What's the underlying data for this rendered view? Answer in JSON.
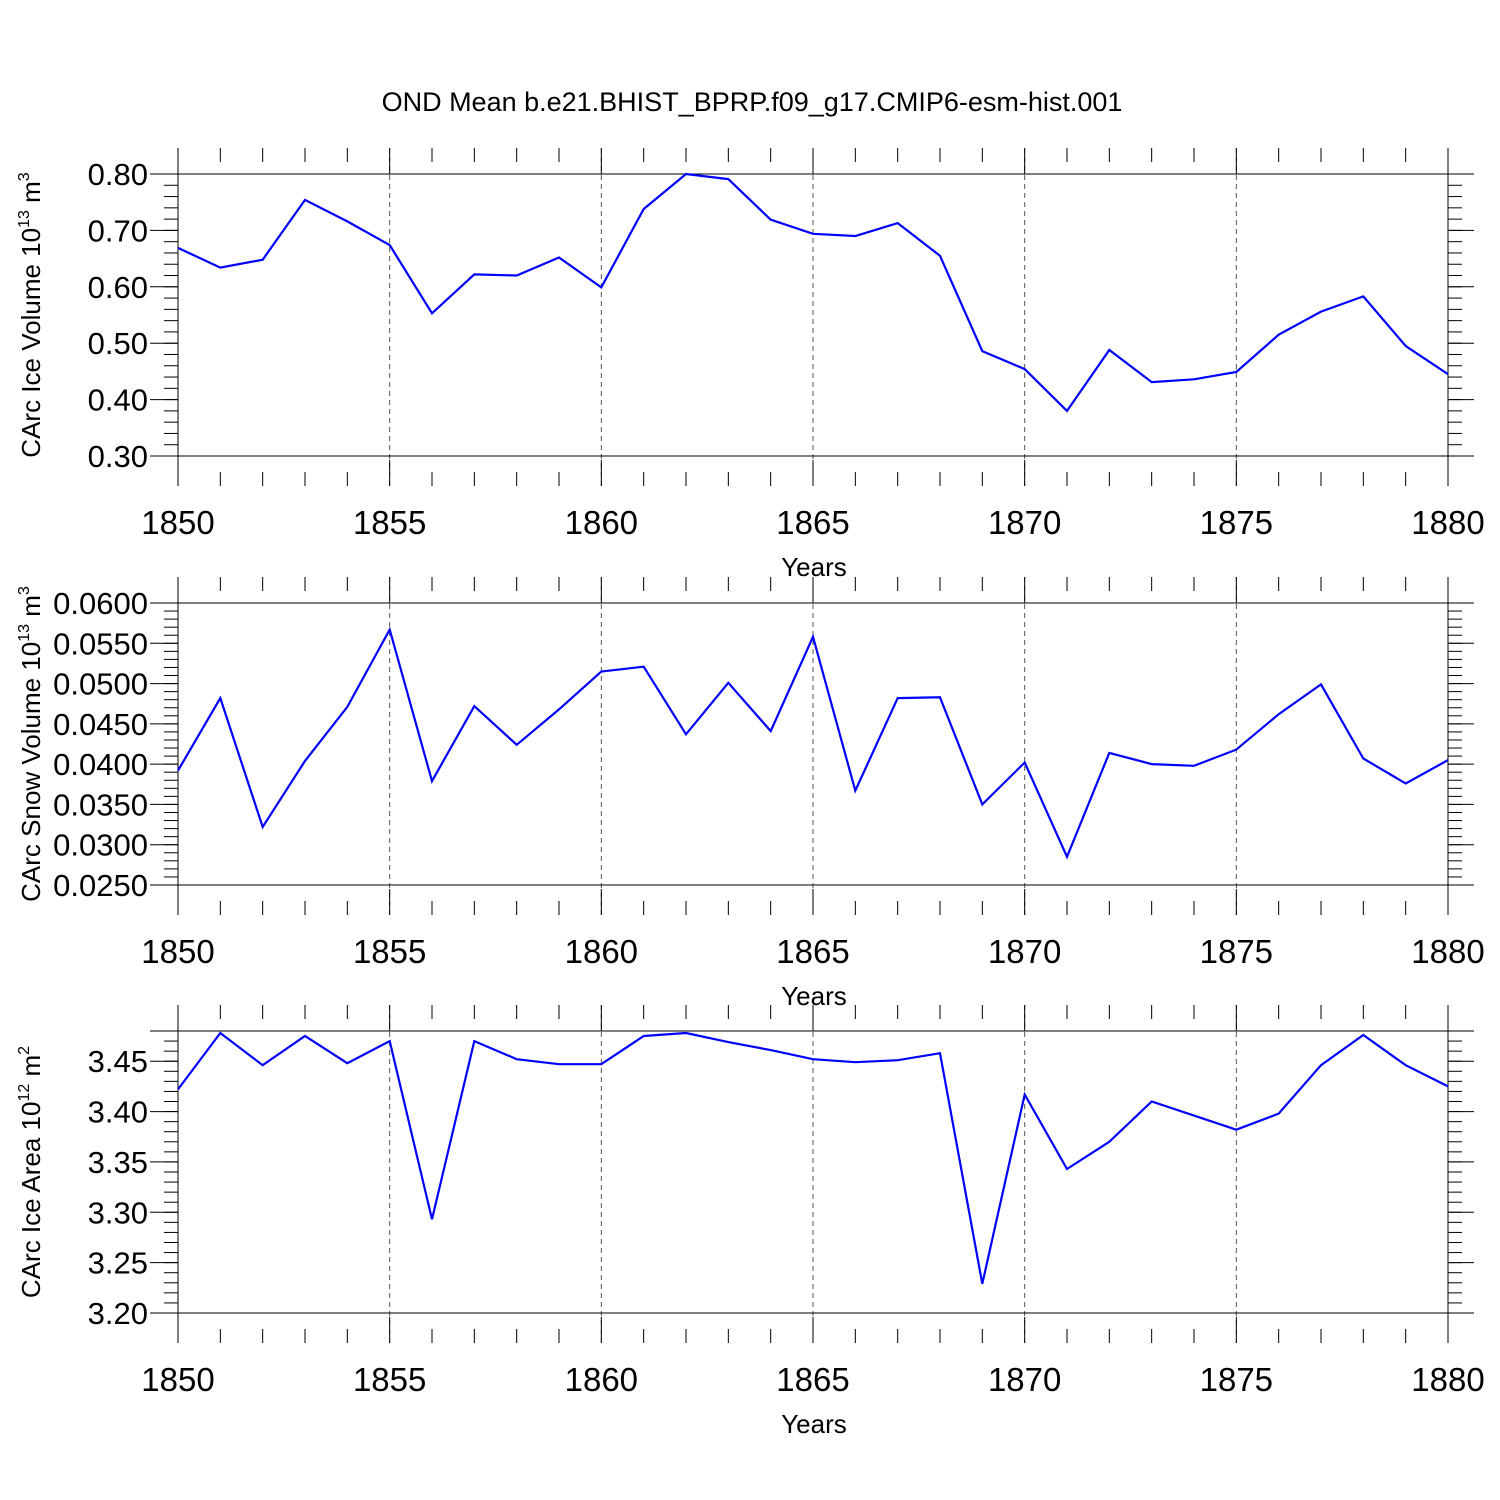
{
  "title": "OND Mean b.e21.BHIST_BPRP.f09_g17.CMIP6-esm-hist.001",
  "colors": {
    "line": "#0000ff",
    "axis": "#000000",
    "grid": "#555555"
  },
  "chart_data": [
    {
      "type": "line",
      "ylabel_main": "CArc Ice Volume 10",
      "ylabel_exp": "13",
      "ylabel_unit": " m",
      "ylabel_unit_exp": "3",
      "xlabel": "Years",
      "xlim": [
        1850,
        1880
      ],
      "ylim": [
        0.3,
        0.8
      ],
      "yticks": [
        0.3,
        0.4,
        0.5,
        0.6,
        0.7,
        0.8
      ],
      "ytick_labels": [
        "0.30",
        "0.40",
        "0.50",
        "0.60",
        "0.70",
        "0.80"
      ],
      "xticks": [
        1850,
        1855,
        1860,
        1865,
        1870,
        1875,
        1880
      ],
      "xtick_labels": [
        "1850",
        "1855",
        "1860",
        "1865",
        "1870",
        "1875",
        "1880"
      ],
      "y_minor_step": 0.02,
      "x": [
        1850,
        1851,
        1852,
        1853,
        1854,
        1855,
        1856,
        1857,
        1858,
        1859,
        1860,
        1861,
        1862,
        1863,
        1864,
        1865,
        1866,
        1867,
        1868,
        1869,
        1870,
        1871,
        1872,
        1873,
        1874,
        1875,
        1876,
        1877,
        1878,
        1879,
        1880
      ],
      "values": [
        0.669,
        0.634,
        0.648,
        0.754,
        0.716,
        0.674,
        0.553,
        0.622,
        0.62,
        0.652,
        0.599,
        0.738,
        0.8,
        0.791,
        0.719,
        0.694,
        0.69,
        0.713,
        0.655,
        0.486,
        0.454,
        0.38,
        0.488,
        0.431,
        0.436,
        0.449,
        0.515,
        0.556,
        0.583,
        0.495,
        0.445
      ]
    },
    {
      "type": "line",
      "ylabel_main": "CArc Snow Volume 10",
      "ylabel_exp": "13",
      "ylabel_unit": " m",
      "ylabel_unit_exp": "3",
      "xlabel": "Years",
      "xlim": [
        1850,
        1880
      ],
      "ylim": [
        0.025,
        0.06
      ],
      "yticks": [
        0.025,
        0.03,
        0.035,
        0.04,
        0.045,
        0.05,
        0.055,
        0.06
      ],
      "ytick_labels": [
        "0.0250",
        "0.0300",
        "0.0350",
        "0.0400",
        "0.0450",
        "0.0500",
        "0.0550",
        "0.0600"
      ],
      "xticks": [
        1850,
        1855,
        1860,
        1865,
        1870,
        1875,
        1880
      ],
      "xtick_labels": [
        "1850",
        "1855",
        "1860",
        "1865",
        "1870",
        "1875",
        "1880"
      ],
      "y_minor_step": 0.001,
      "x": [
        1850,
        1851,
        1852,
        1853,
        1854,
        1855,
        1856,
        1857,
        1858,
        1859,
        1860,
        1861,
        1862,
        1863,
        1864,
        1865,
        1866,
        1867,
        1868,
        1869,
        1870,
        1871,
        1872,
        1873,
        1874,
        1875,
        1876,
        1877,
        1878,
        1879,
        1880
      ],
      "values": [
        0.0392,
        0.0482,
        0.0322,
        0.0404,
        0.0471,
        0.0567,
        0.0379,
        0.0472,
        0.0424,
        0.0468,
        0.0515,
        0.0521,
        0.0437,
        0.0501,
        0.0441,
        0.0558,
        0.0367,
        0.0482,
        0.0483,
        0.035,
        0.0402,
        0.0285,
        0.0414,
        0.04,
        0.0398,
        0.0418,
        0.0462,
        0.0499,
        0.0407,
        0.0376,
        0.0405
      ]
    },
    {
      "type": "line",
      "ylabel_main": "CArc Ice Area 10",
      "ylabel_exp": "12",
      "ylabel_unit": " m",
      "ylabel_unit_exp": "2",
      "xlabel": "Years",
      "xlim": [
        1850,
        1880
      ],
      "ylim": [
        3.2,
        3.48
      ],
      "yticks": [
        3.2,
        3.25,
        3.3,
        3.35,
        3.4,
        3.45
      ],
      "ytick_labels": [
        "3.20",
        "3.25",
        "3.30",
        "3.35",
        "3.40",
        "3.45"
      ],
      "xticks": [
        1850,
        1855,
        1860,
        1865,
        1870,
        1875,
        1880
      ],
      "xtick_labels": [
        "1850",
        "1855",
        "1860",
        "1865",
        "1870",
        "1875",
        "1880"
      ],
      "y_minor_step": 0.01,
      "x": [
        1850,
        1851,
        1852,
        1853,
        1854,
        1855,
        1856,
        1857,
        1858,
        1859,
        1860,
        1861,
        1862,
        1863,
        1864,
        1865,
        1866,
        1867,
        1868,
        1869,
        1870,
        1871,
        1872,
        1873,
        1874,
        1875,
        1876,
        1877,
        1878,
        1879,
        1880
      ],
      "values": [
        3.422,
        3.478,
        3.446,
        3.475,
        3.448,
        3.47,
        3.293,
        3.47,
        3.452,
        3.447,
        3.447,
        3.475,
        3.478,
        3.469,
        3.461,
        3.452,
        3.449,
        3.451,
        3.458,
        3.229,
        3.417,
        3.343,
        3.37,
        3.41,
        3.396,
        3.382,
        3.398,
        3.446,
        3.476,
        3.446,
        3.425
      ]
    }
  ]
}
